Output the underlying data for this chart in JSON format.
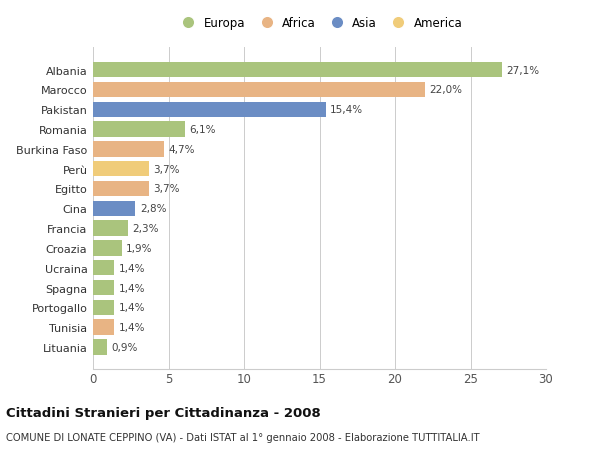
{
  "countries": [
    "Albania",
    "Marocco",
    "Pakistan",
    "Romania",
    "Burkina Faso",
    "Perù",
    "Egitto",
    "Cina",
    "Francia",
    "Croazia",
    "Ucraina",
    "Spagna",
    "Portogallo",
    "Tunisia",
    "Lituania"
  ],
  "values": [
    27.1,
    22.0,
    15.4,
    6.1,
    4.7,
    3.7,
    3.7,
    2.8,
    2.3,
    1.9,
    1.4,
    1.4,
    1.4,
    1.4,
    0.9
  ],
  "labels": [
    "27,1%",
    "22,0%",
    "15,4%",
    "6,1%",
    "4,7%",
    "3,7%",
    "3,7%",
    "2,8%",
    "2,3%",
    "1,9%",
    "1,4%",
    "1,4%",
    "1,4%",
    "1,4%",
    "0,9%"
  ],
  "continents": [
    "Europa",
    "Africa",
    "Asia",
    "Europa",
    "Africa",
    "America",
    "Africa",
    "Asia",
    "Europa",
    "Europa",
    "Europa",
    "Europa",
    "Europa",
    "Africa",
    "Europa"
  ],
  "colors": {
    "Europa": "#aac47d",
    "Africa": "#e8b484",
    "Asia": "#6b8dc4",
    "America": "#f0cc7a"
  },
  "legend_order": [
    "Europa",
    "Africa",
    "Asia",
    "America"
  ],
  "xlim": [
    0,
    30
  ],
  "xticks": [
    0,
    5,
    10,
    15,
    20,
    25,
    30
  ],
  "title": "Cittadini Stranieri per Cittadinanza - 2008",
  "subtitle": "COMUNE DI LONATE CEPPINO (VA) - Dati ISTAT al 1° gennaio 2008 - Elaborazione TUTTITALIA.IT",
  "bg_color": "#ffffff",
  "grid_color": "#cccccc",
  "bar_height": 0.78
}
